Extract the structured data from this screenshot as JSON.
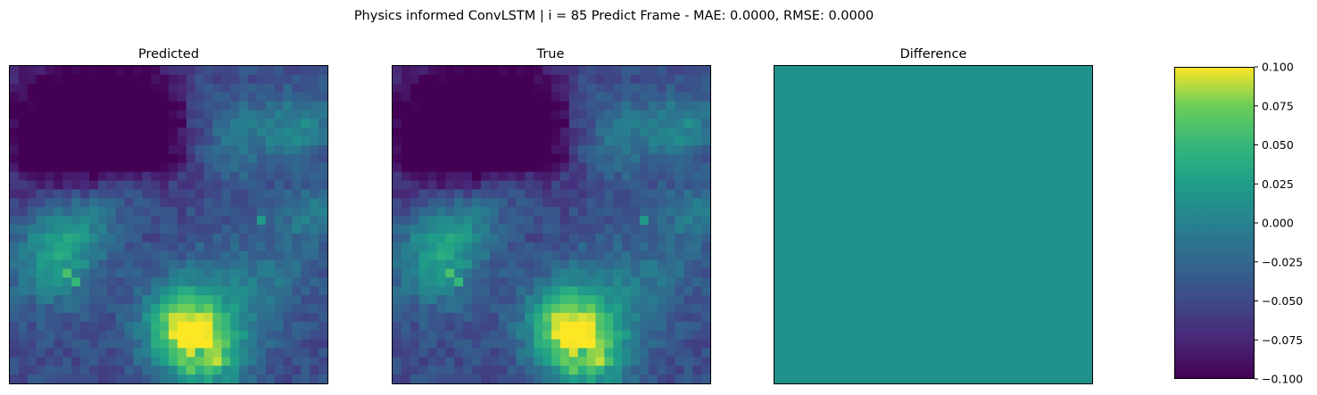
{
  "figure": {
    "suptitle": "Physics informed ConvLSTM | i = 85 Predict Frame - MAE: 0.0000, RMSE: 0.0000"
  },
  "chart_data": [
    {
      "type": "heatmap",
      "title": "Predicted",
      "axes_ticks": "off",
      "colormap": "viridis",
      "grid_size": [
        36,
        36
      ],
      "description_of_values": "precipitation-like field, mostly low values with bright clusters lower-middle and mid-left"
    },
    {
      "type": "heatmap",
      "title": "True",
      "axes_ticks": "off",
      "colormap": "viridis",
      "grid_size": [
        36,
        36
      ],
      "same_as": "Predicted"
    },
    {
      "type": "heatmap",
      "title": "Difference",
      "axes_ticks": "off",
      "colormap": "viridis",
      "uniform_value": 0.0,
      "colorbar": {
        "vmin": -0.1,
        "vmax": 0.1,
        "ticks": [
          "0.100",
          "0.075",
          "0.050",
          "0.025",
          "0.000",
          "−0.025",
          "−0.050",
          "−0.075",
          "−0.100"
        ],
        "tick_values": [
          0.1,
          0.075,
          0.05,
          0.025,
          0.0,
          -0.025,
          -0.05,
          -0.075,
          -0.1
        ]
      }
    }
  ],
  "colors": {
    "viridis_low": "#440154",
    "viridis_mid": "#21918c",
    "viridis_high": "#fde725"
  }
}
